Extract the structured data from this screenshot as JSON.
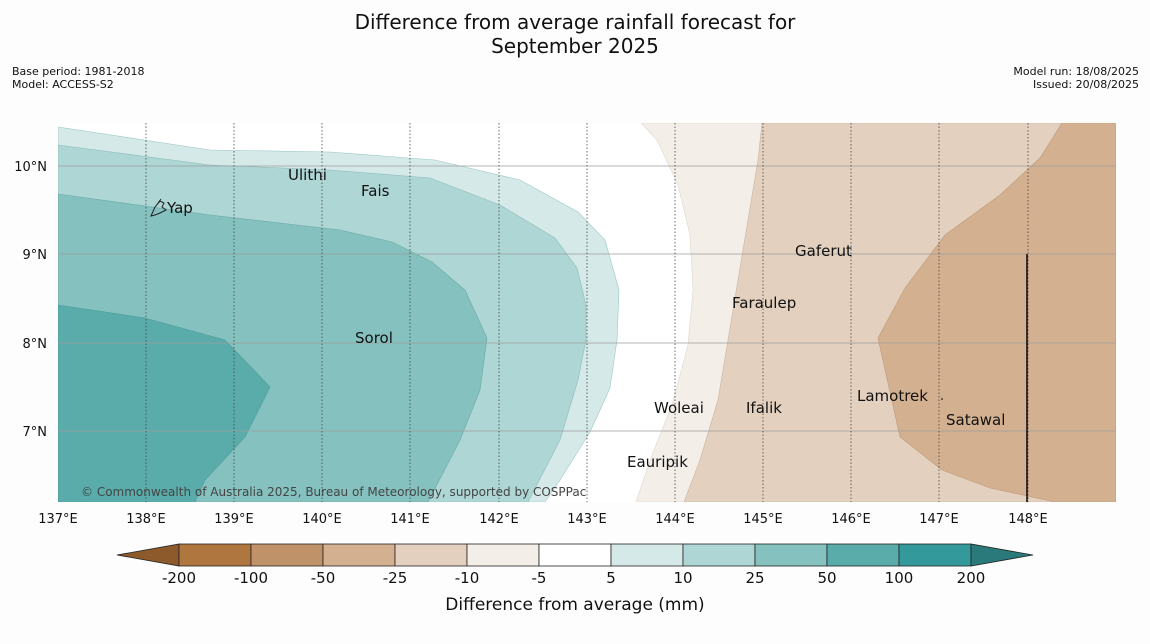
{
  "title_line1": "Difference from average rainfall forecast for",
  "title_line2": "September 2025",
  "meta_left": [
    "Base period: 1981-2018",
    "Model: ACCESS-S2"
  ],
  "meta_right": [
    "Model run: 18/08/2025",
    "Issued: 20/08/2025"
  ],
  "lon_labels": [
    "137°E",
    "138°E",
    "139°E",
    "140°E",
    "141°E",
    "142°E",
    "143°E",
    "144°E",
    "145°E",
    "146°E",
    "147°E",
    "148°E"
  ],
  "lat_labels": [
    "10°N",
    "9°N",
    "8°N",
    "7°N"
  ],
  "places": [
    {
      "name": "Ulithi",
      "lon": 139.75,
      "lat": 9.95
    },
    {
      "name": "Fais",
      "lon": 140.45,
      "lat": 9.8
    },
    {
      "name": "Yap",
      "lon": 138.2,
      "lat": 9.5
    },
    {
      "name": "Gaferut",
      "lon": 145.35,
      "lat": 9.1
    },
    {
      "name": "Faraulep",
      "lon": 144.6,
      "lat": 8.5
    },
    {
      "name": "Sorol",
      "lon": 140.4,
      "lat": 8.1
    },
    {
      "name": "Woleai",
      "lon": 143.8,
      "lat": 7.35
    },
    {
      "name": "Ifalik",
      "lon": 144.75,
      "lat": 7.32
    },
    {
      "name": "Lamotrek",
      "lon": 145.95,
      "lat": 7.45
    },
    {
      "name": "Satawal",
      "lon": 147.1,
      "lat": 7.2
    },
    {
      "name": "Eauripik",
      "lon": 143.45,
      "lat": 6.72
    }
  ],
  "copyright": "© Commonwealth of Australia 2025, Bureau of Meteorology, supported by COSPPac",
  "colorbar": {
    "ticks": [
      "-200",
      "-100",
      "-50",
      "-25",
      "-10",
      "-5",
      "5",
      "10",
      "25",
      "50",
      "100",
      "200"
    ],
    "colors": [
      "#b07640",
      "#c0926a",
      "#d3b090",
      "#e3d0be",
      "#f3eee8",
      "#ffffff",
      "#d5e9e8",
      "#add6d5",
      "#84c1bf",
      "#5aacab",
      "#34999a"
    ],
    "extend_low_color": "#8c5a2b",
    "extend_high_color": "#2a7a7b",
    "label": "Difference from average (mm)"
  }
}
